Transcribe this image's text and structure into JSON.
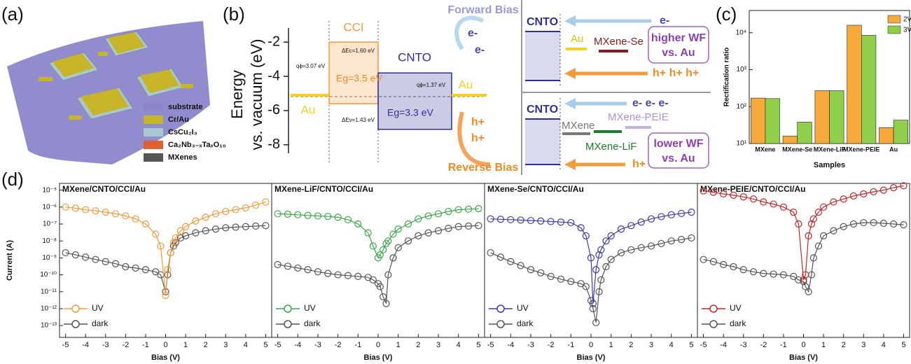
{
  "panel_labels": [
    "(a)",
    "(b)",
    "(c)",
    "(d)"
  ],
  "device_legend": [
    "substrate",
    "Cr/Au",
    "CsCu₂I₃",
    "Ca₂Nb₃₋ₓTaₓO₁₀",
    "MXenes"
  ],
  "contacts": {
    "upper": {
      "cnto": "CNTO",
      "electron": "e-",
      "metal": "Au",
      "mxene": "MXene-Se",
      "note": [
        "higher WF",
        "vs. Au"
      ],
      "holes": "h+ h+ h+"
    },
    "lower": {
      "cnto": "CNTO",
      "electrons": "e- e- e-",
      "peie": "MXene-PEIE",
      "mxene": "MXene",
      "lif": "MXene-LiF",
      "note": [
        "lower WF",
        "vs. Au"
      ],
      "hole": "h+"
    }
  },
  "chart_data": [
    {
      "type": "band",
      "ylabel": [
        "Energy",
        "vs. vacuum (eV)"
      ],
      "ylim": [
        -8.5,
        -1.5
      ],
      "yticks": [
        -2,
        -4,
        -6,
        -8
      ],
      "series": [
        {
          "name": "Au",
          "color": "#f5d020",
          "values": [
            -5.1
          ]
        },
        {
          "name": "CCI",
          "color": "#f39a3a",
          "values": [
            -2.0,
            -5.6
          ]
        },
        {
          "name": "CNTO",
          "color": "#2e2e9a",
          "values": [
            -3.8,
            -7.1
          ]
        },
        {
          "name": "Au",
          "color": "#f5d020",
          "values": [
            -5.1
          ]
        }
      ],
      "annotations": [
        "qϕ=3.07 eV",
        "ΔEc=1.60 eV",
        "Eg=3.5 eV",
        "ΔEv=1.43 eV",
        "Eg=3.3 eV",
        "qϕ=1.37 eV",
        "Forward Bias",
        "e-",
        "e-",
        "h+",
        "h+",
        "Reverse Bias"
      ]
    },
    {
      "type": "bar",
      "ylabel": "Rectification ratio",
      "xlabel": "Samples",
      "log": true,
      "categories": [
        "MXene",
        "MXene-Se",
        "MXene-LiF",
        "MXene-PEIE",
        "Au"
      ],
      "series": [
        {
          "name": "2V",
          "color": "#f8a93c",
          "values": [
            170,
            16,
            270,
            16000,
            27
          ]
        },
        {
          "name": "3V",
          "color": "#8fcf4a",
          "values": [
            165,
            38,
            270,
            8500,
            43
          ]
        }
      ],
      "ylim": [
        10,
        40000
      ],
      "yticks": [
        {
          "value": 10,
          "label": "10¹"
        },
        {
          "value": 100,
          "label": "10²"
        },
        {
          "value": 1000,
          "label": "10³"
        },
        {
          "value": 10000,
          "label": "10⁴"
        }
      ]
    },
    {
      "type": "line",
      "title": "MXene/CNTO/CCI/Au",
      "xlabel": "Bias (V)",
      "ylabel": "Current (A)",
      "log": true,
      "x": [
        -5,
        -4.5,
        -4,
        -3.5,
        -3,
        -2.5,
        -2,
        -1.5,
        -1,
        -0.5,
        -0.25,
        0,
        0.1,
        0.25,
        0.4,
        0.5,
        0.75,
        1,
        1.5,
        2,
        2.5,
        3,
        3.5,
        4,
        4.5,
        5
      ],
      "xlim": [
        -5.3,
        5.3
      ],
      "xticks": [
        -5,
        -4,
        -3,
        -2,
        -1,
        0,
        1,
        2,
        3,
        4,
        5
      ],
      "ylim": [
        2e-14,
        2.5e-05
      ],
      "yticks": [
        {
          "value": 1e-05,
          "label": "10⁻⁵"
        },
        {
          "value": 1e-06,
          "label": "10⁻⁶"
        },
        {
          "value": 1e-07,
          "label": "10⁻⁷"
        },
        {
          "value": 1e-08,
          "label": "10⁻⁸"
        },
        {
          "value": 1e-09,
          "label": "10⁻⁹"
        },
        {
          "value": 1e-10,
          "label": "10⁻¹⁰"
        },
        {
          "value": 1e-11,
          "label": "10⁻¹¹"
        },
        {
          "value": 1e-12,
          "label": "10⁻¹²"
        },
        {
          "value": 1e-13,
          "label": "10⁻¹³"
        }
      ],
      "series": [
        {
          "name": "UV",
          "color": "#f39a3a",
          "values": [
            1e-06,
            8.5e-07,
            7e-07,
            6e-07,
            5e-07,
            4e-07,
            3e-07,
            2e-07,
            1e-07,
            2.5e-08,
            5e-09,
            6e-12,
            2e-10,
            2e-09,
            8e-09,
            1.5e-08,
            4e-08,
            7e-08,
            1.5e-07,
            2.5e-07,
            4e-07,
            5.5e-07,
            7e-07,
            9e-07,
            1.3e-06,
            2e-06
          ]
        },
        {
          "name": "dark",
          "color": "#555555",
          "values": [
            2e-09,
            1.5e-09,
            1.1e-09,
            8e-10,
            6e-10,
            4.5e-10,
            3e-10,
            2.5e-10,
            2e-10,
            1.5e-10,
            1e-10,
            1e-11,
            1e-10,
            2e-09,
            5e-09,
            8e-09,
            1.5e-08,
            2e-08,
            3e-08,
            4e-08,
            5e-08,
            6e-08,
            6.5e-08,
            7e-08,
            7.5e-08,
            8e-08
          ]
        }
      ]
    },
    {
      "type": "line",
      "title": "MXene-LiF/CNTO/CCI/Au",
      "xlabel": "Bias (V)",
      "log": true,
      "x": [
        -5,
        -4.5,
        -4,
        -3.5,
        -3,
        -2.5,
        -2,
        -1.5,
        -1,
        -0.5,
        -0.25,
        0,
        0.1,
        0.25,
        0.4,
        0.5,
        0.75,
        1,
        1.5,
        2,
        2.5,
        3,
        3.5,
        4,
        4.5,
        5
      ],
      "xlim": [
        -5.3,
        5.3
      ],
      "xticks": [
        -5,
        -4,
        -3,
        -2,
        -1,
        0,
        1,
        2,
        3,
        4,
        5
      ],
      "ylim": [
        2e-14,
        2.5e-05
      ],
      "series": [
        {
          "name": "UV",
          "color": "#3aa84a",
          "values": [
            4e-07,
            3.8e-07,
            3.5e-07,
            3.2e-07,
            3e-07,
            2.8e-07,
            2.5e-07,
            1.8e-07,
            1e-07,
            3e-08,
            5e-09,
            1e-09,
            1.5e-09,
            3e-09,
            7e-09,
            1e-08,
            2.5e-08,
            5e-08,
            1e-07,
            2e-07,
            3e-07,
            4e-07,
            5.5e-07,
            7e-07,
            7.5e-07,
            8e-07
          ]
        },
        {
          "name": "dark",
          "color": "#555555",
          "values": [
            4e-10,
            3.2e-10,
            2.5e-10,
            2e-10,
            1.5e-10,
            1.2e-10,
            1e-10,
            9e-11,
            8e-11,
            7e-11,
            5e-11,
            3e-11,
            2e-11,
            5e-12,
            2e-12,
            1e-10,
            1e-09,
            4e-09,
            1e-08,
            2e-08,
            3e-08,
            4e-08,
            5.5e-08,
            7e-08,
            7.5e-08,
            8e-08
          ]
        }
      ]
    },
    {
      "type": "line",
      "title": "MXene-Se/CNTO/CCI/Au",
      "xlabel": "Bias (V)",
      "log": true,
      "x": [
        -5,
        -4.5,
        -4,
        -3.5,
        -3,
        -2.5,
        -2,
        -1.5,
        -1,
        -0.5,
        -0.25,
        0,
        0.1,
        0.25,
        0.4,
        0.5,
        0.75,
        1,
        1.5,
        2,
        2.5,
        3,
        3.5,
        4,
        4.5,
        5
      ],
      "xlim": [
        -5.3,
        5.3
      ],
      "xticks": [
        -5,
        -4,
        -3,
        -2,
        -1,
        0,
        1,
        2,
        3,
        4,
        5
      ],
      "ylim": [
        2e-14,
        2.5e-05
      ],
      "series": [
        {
          "name": "UV",
          "color": "#3c3caa",
          "values": [
            2e-07,
            1.9e-07,
            1.8e-07,
            1.7e-07,
            1.6e-07,
            1.5e-07,
            1.4e-07,
            1.3e-07,
            1.2e-07,
            6e-08,
            2e-08,
            1e-09,
            2e-12,
            2e-10,
            1.5e-09,
            3e-09,
            1e-08,
            2e-08,
            5e-08,
            8e-08,
            1.3e-07,
            2e-07,
            2.7e-07,
            3.5e-07,
            4.2e-07,
            5e-07
          ]
        },
        {
          "name": "dark",
          "color": "#555555",
          "values": [
            2e-09,
            1.1e-09,
            6e-10,
            3.5e-10,
            2e-10,
            1.3e-10,
            8e-11,
            5.5e-11,
            4e-11,
            3e-11,
            2e-11,
            3e-12,
            1e-12,
            1.5e-13,
            1e-11,
            5e-11,
            3e-10,
            8e-10,
            2e-09,
            3e-09,
            4e-09,
            5e-09,
            7e-09,
            1e-08,
            1.2e-08,
            1.5e-08
          ]
        }
      ]
    },
    {
      "type": "line",
      "title": "MXene-PEIE/CNTO/CCI/Au",
      "xlabel": "Bias (V)",
      "log": true,
      "x": [
        -5,
        -4.5,
        -4,
        -3.5,
        -3,
        -2.5,
        -2,
        -1.5,
        -1,
        -0.5,
        -0.25,
        0,
        0.1,
        0.25,
        0.4,
        0.5,
        0.75,
        1,
        1.5,
        2,
        2.5,
        3,
        3.5,
        4,
        4.5,
        5
      ],
      "xlim": [
        -5.3,
        5.3
      ],
      "xticks": [
        -5,
        -4,
        -3,
        -2,
        -1,
        0,
        1,
        2,
        3,
        4,
        5
      ],
      "ylim": [
        2e-14,
        2.5e-05
      ],
      "series": [
        {
          "name": "UV",
          "color": "#c0282a",
          "values": [
            9e-06,
            7.5e-06,
            6e-06,
            5e-06,
            4e-06,
            3e-06,
            2e-06,
            1.5e-06,
            1e-06,
            5e-07,
            1e-07,
            5e-11,
            1e-10,
            2e-08,
            1e-07,
            2e-07,
            5e-07,
            1e-06,
            2e-06,
            3e-06,
            4.5e-06,
            6e-06,
            8e-06,
            1e-05,
            1.4e-05,
            1.8e-05
          ]
        },
        {
          "name": "dark",
          "color": "#555555",
          "values": [
            8e-10,
            6e-10,
            4e-10,
            3e-10,
            2e-10,
            1.5e-10,
            1.2e-10,
            1.1e-10,
            1e-10,
            8e-11,
            5e-11,
            4e-11,
            2e-11,
            1e-11,
            1e-10,
            1e-09,
            5e-09,
            2e-08,
            4e-08,
            7e-08,
            1e-07,
            1.2e-07,
            1.2e-07,
            1.1e-07,
            1e-07,
            9e-08
          ]
        }
      ]
    }
  ]
}
